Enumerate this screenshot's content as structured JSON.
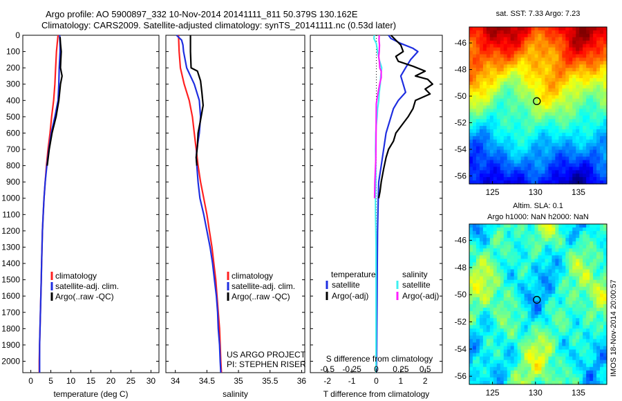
{
  "header": {
    "line1": "Argo profile: AO 5900897_332 10-Nov-2014 20141111_811 50.379S 130.162E",
    "line2": "Climatology: CARS2009. Satellite-adjusted climatology: synTS_20141111.nc (0.53d later)"
  },
  "side_label": "IMOS 18-Nov-2014 20:00:57",
  "colors": {
    "red": "#ff2020",
    "blue": "#1e2ee0",
    "black": "#000000",
    "cyan": "#3ff0f0",
    "magenta": "#ff20ff"
  },
  "chart_data": [
    {
      "type": "line",
      "id": "temperature",
      "xlabel": "temperature (deg C)",
      "xlim": [
        -2,
        32
      ],
      "xticks": [
        0,
        5,
        10,
        15,
        20,
        25,
        30
      ],
      "ylim": [
        2070,
        0
      ],
      "yticks": [
        0,
        100,
        200,
        300,
        400,
        500,
        600,
        700,
        800,
        900,
        1000,
        1100,
        1200,
        1300,
        1400,
        1500,
        1600,
        1700,
        1800,
        1900,
        2000
      ],
      "legend": [
        "climatology",
        "satellite-adj. clim.",
        "Argo(..raw -QC)"
      ],
      "series": [
        {
          "name": "climatology",
          "color": "red",
          "points": [
            [
              6.8,
              0
            ],
            [
              6.6,
              50
            ],
            [
              6.4,
              100
            ],
            [
              6.3,
              150
            ],
            [
              6.2,
              200
            ],
            [
              6.0,
              300
            ],
            [
              5.7,
              400
            ],
            [
              5.2,
              500
            ],
            [
              4.8,
              600
            ],
            [
              4.3,
              700
            ],
            [
              3.9,
              800
            ],
            [
              3.6,
              900
            ],
            [
              3.3,
              1000
            ],
            [
              3.1,
              1100
            ],
            [
              2.9,
              1200
            ],
            [
              2.8,
              1300
            ],
            [
              2.7,
              1400
            ],
            [
              2.6,
              1500
            ],
            [
              2.5,
              1600
            ],
            [
              2.4,
              1700
            ],
            [
              2.3,
              1800
            ],
            [
              2.2,
              1900
            ],
            [
              2.1,
              2000
            ],
            [
              2.1,
              2070
            ]
          ]
        },
        {
          "name": "satellite-adj. clim.",
          "color": "blue",
          "points": [
            [
              7.2,
              0
            ],
            [
              7.3,
              50
            ],
            [
              7.3,
              100
            ],
            [
              7.2,
              150
            ],
            [
              7.1,
              200
            ],
            [
              7.0,
              300
            ],
            [
              6.8,
              400
            ],
            [
              6.0,
              500
            ],
            [
              5.1,
              600
            ],
            [
              4.5,
              700
            ],
            [
              4.0,
              800
            ],
            [
              3.6,
              900
            ],
            [
              3.3,
              1000
            ],
            [
              3.1,
              1100
            ],
            [
              2.9,
              1200
            ],
            [
              2.8,
              1300
            ],
            [
              2.7,
              1400
            ],
            [
              2.6,
              1500
            ],
            [
              2.5,
              1600
            ],
            [
              2.4,
              1700
            ],
            [
              2.3,
              1800
            ],
            [
              2.2,
              1900
            ],
            [
              2.2,
              2000
            ],
            [
              2.2,
              2070
            ]
          ]
        },
        {
          "name": "Argo(..raw -QC)",
          "color": "black",
          "points": [
            [
              7.3,
              10
            ],
            [
              7.4,
              50
            ],
            [
              7.6,
              100
            ],
            [
              7.5,
              150
            ],
            [
              7.4,
              200
            ],
            [
              7.8,
              250
            ],
            [
              7.4,
              300
            ],
            [
              7.2,
              350
            ],
            [
              7.0,
              400
            ],
            [
              6.3,
              500
            ],
            [
              5.3,
              600
            ],
            [
              4.6,
              700
            ],
            [
              4.1,
              800
            ]
          ]
        }
      ]
    },
    {
      "type": "line",
      "id": "salinity",
      "xlabel": "salinity",
      "xlim": [
        33.85,
        36.05
      ],
      "xticks": [
        34,
        34.5,
        35,
        35.5,
        36
      ],
      "ylim": [
        2070,
        0
      ],
      "legend": [
        "climatology",
        "satellite-adj. clim.",
        "Argo(..raw -QC)"
      ],
      "annotation": [
        "US ARGO PROJECT",
        "PI: STEPHEN RISER"
      ],
      "series": [
        {
          "name": "climatology",
          "color": "red",
          "points": [
            [
              34.05,
              0
            ],
            [
              34.06,
              100
            ],
            [
              34.08,
              200
            ],
            [
              34.14,
              300
            ],
            [
              34.22,
              400
            ],
            [
              34.27,
              500
            ],
            [
              34.3,
              600
            ],
            [
              34.33,
              700
            ],
            [
              34.36,
              800
            ],
            [
              34.4,
              900
            ],
            [
              34.45,
              1000
            ],
            [
              34.5,
              1100
            ],
            [
              34.54,
              1200
            ],
            [
              34.58,
              1300
            ],
            [
              34.61,
              1400
            ],
            [
              34.64,
              1500
            ],
            [
              34.66,
              1600
            ],
            [
              34.68,
              1700
            ],
            [
              34.7,
              1800
            ],
            [
              34.71,
              1900
            ],
            [
              34.72,
              2000
            ],
            [
              34.73,
              2070
            ]
          ]
        },
        {
          "name": "satellite-adj. clim.",
          "color": "blue",
          "points": [
            [
              34.02,
              0
            ],
            [
              34.1,
              30
            ],
            [
              34.12,
              60
            ],
            [
              34.13,
              100
            ],
            [
              34.18,
              200
            ],
            [
              34.3,
              300
            ],
            [
              34.38,
              400
            ],
            [
              34.4,
              500
            ],
            [
              34.38,
              600
            ],
            [
              34.34,
              700
            ],
            [
              34.33,
              750
            ],
            [
              34.34,
              800
            ],
            [
              34.36,
              900
            ],
            [
              34.39,
              1000
            ],
            [
              34.45,
              1100
            ],
            [
              34.5,
              1200
            ],
            [
              34.55,
              1300
            ],
            [
              34.59,
              1400
            ],
            [
              34.62,
              1500
            ],
            [
              34.65,
              1600
            ],
            [
              34.67,
              1700
            ],
            [
              34.68,
              1800
            ],
            [
              34.7,
              1900
            ],
            [
              34.71,
              2000
            ],
            [
              34.72,
              2070
            ]
          ]
        },
        {
          "name": "Argo(..raw -QC)",
          "color": "black",
          "points": [
            [
              34.24,
              0
            ],
            [
              34.24,
              100
            ],
            [
              34.25,
              200
            ],
            [
              34.35,
              220
            ],
            [
              34.4,
              280
            ],
            [
              34.42,
              350
            ],
            [
              34.44,
              430
            ],
            [
              34.4,
              520
            ],
            [
              34.36,
              600
            ],
            [
              34.35,
              680
            ],
            [
              34.33,
              750
            ],
            [
              34.34,
              800
            ]
          ]
        }
      ]
    },
    {
      "type": "line",
      "id": "difference",
      "xlabel": "T difference from climatology",
      "xlabel2": "S difference from climatology",
      "xlim": [
        -2.7,
        2.7
      ],
      "xticks": [
        -2,
        -1,
        0,
        1,
        2
      ],
      "xticks2": [
        {
          "value": -0.5,
          "label": "-0.5"
        },
        {
          "value": -0.25,
          "label": "-0.25"
        },
        {
          "value": 0,
          "label": "0"
        },
        {
          "value": 0.25,
          "label": "0.25"
        },
        {
          "value": 0.5,
          "label": "0.5"
        }
      ],
      "ylim": [
        2070,
        0
      ],
      "legend_titles": [
        "temperature",
        "salinity"
      ],
      "legend_left": [
        "satellite",
        "Argo(-adj)"
      ],
      "legend_right": [
        "satellite",
        "Argo(-adj)"
      ],
      "series": [
        {
          "name": "temperature satellite",
          "color": "blue",
          "points": [
            [
              0.5,
              0
            ],
            [
              0.6,
              20
            ],
            [
              1.0,
              50
            ],
            [
              1.5,
              80
            ],
            [
              1.7,
              100
            ],
            [
              1.4,
              150
            ],
            [
              1.2,
              200
            ],
            [
              1.0,
              250
            ],
            [
              1.1,
              300
            ],
            [
              1.2,
              350
            ],
            [
              0.9,
              400
            ],
            [
              0.7,
              450
            ],
            [
              0.6,
              500
            ],
            [
              0.4,
              600
            ],
            [
              0.3,
              700
            ],
            [
              0.2,
              800
            ],
            [
              0.1,
              900
            ],
            [
              0.08,
              1000
            ],
            [
              0.05,
              1200
            ],
            [
              0.04,
              1400
            ],
            [
              0.03,
              1600
            ],
            [
              0.02,
              1800
            ],
            [
              0.01,
              2000
            ],
            [
              0.0,
              2070
            ]
          ]
        },
        {
          "name": "temperature Argo(-adj)",
          "color": "black",
          "points": [
            [
              0.6,
              0
            ],
            [
              0.8,
              30
            ],
            [
              1.0,
              60
            ],
            [
              1.1,
              100
            ],
            [
              0.8,
              130
            ],
            [
              0.9,
              160
            ],
            [
              1.5,
              190
            ],
            [
              2.0,
              220
            ],
            [
              1.6,
              250
            ],
            [
              2.1,
              270
            ],
            [
              2.3,
              300
            ],
            [
              2.0,
              330
            ],
            [
              2.2,
              360
            ],
            [
              1.6,
              400
            ],
            [
              1.5,
              450
            ],
            [
              1.3,
              500
            ],
            [
              1.0,
              560
            ],
            [
              0.8,
              600
            ],
            [
              0.7,
              650
            ],
            [
              0.5,
              700
            ],
            [
              0.4,
              750
            ],
            [
              0.3,
              820
            ],
            [
              0.2,
              900
            ],
            [
              0.15,
              960
            ],
            [
              0.1,
              1000
            ]
          ]
        },
        {
          "name": "salinity satellite",
          "color": "cyan",
          "points": [
            [
              -0.08,
              0
            ],
            [
              -0.1,
              20
            ],
            [
              0.0,
              50
            ],
            [
              0.05,
              100
            ],
            [
              0.12,
              150
            ],
            [
              0.22,
              200
            ],
            [
              0.18,
              250
            ],
            [
              0.16,
              300
            ],
            [
              0.12,
              350
            ],
            [
              0.1,
              400
            ],
            [
              0.05,
              450
            ],
            [
              0.03,
              500
            ],
            [
              0.0,
              550
            ],
            [
              -0.02,
              600
            ],
            [
              -0.03,
              700
            ],
            [
              -0.02,
              800
            ],
            [
              -0.02,
              900
            ],
            [
              -0.03,
              1000
            ],
            [
              -0.03,
              1100
            ],
            [
              -0.02,
              1200
            ],
            [
              -0.01,
              1300
            ],
            [
              -0.01,
              1400
            ],
            [
              -0.01,
              1500
            ],
            [
              -0.01,
              1600
            ],
            [
              -0.01,
              1700
            ],
            [
              -0.01,
              1800
            ],
            [
              -0.01,
              1900
            ],
            [
              -0.01,
              2000
            ],
            [
              -0.01,
              2070
            ]
          ]
        },
        {
          "name": "salinity Argo(-adj)",
          "color": "magenta",
          "points": [
            [
              0.12,
              0
            ],
            [
              0.11,
              30
            ],
            [
              0.13,
              60
            ],
            [
              0.12,
              100
            ],
            [
              0.1,
              130
            ],
            [
              0.13,
              170
            ],
            [
              0.14,
              200
            ],
            [
              0.2,
              220
            ],
            [
              0.2,
              260
            ],
            [
              0.15,
              290
            ],
            [
              0.1,
              330
            ],
            [
              0.05,
              370
            ],
            [
              0.0,
              420
            ],
            [
              -0.02,
              760
            ],
            [
              -0.03,
              800
            ],
            [
              -0.06,
              900
            ],
            [
              -0.07,
              1000
            ]
          ]
        }
      ]
    },
    {
      "type": "heatmap",
      "id": "sst_map",
      "title": "sat. SST: 7.33 Argo: 7.23",
      "xlim": [
        122.3,
        138.3
      ],
      "ylim": [
        -56.6,
        -44.8
      ],
      "xticks": [
        125,
        130,
        135
      ],
      "yticks": [
        -46,
        -48,
        -50,
        -52,
        -54,
        -56
      ],
      "marker": [
        130.162,
        -50.379
      ]
    },
    {
      "type": "heatmap",
      "id": "sla_map",
      "title": "Altim. SLA: 0.1",
      "subtitle": "Argo h1000: NaN h2000: NaN",
      "xlim": [
        122.3,
        138.3
      ],
      "ylim": [
        -56.6,
        -44.8
      ],
      "xticks": [
        125,
        130,
        135
      ],
      "yticks": [
        -46,
        -48,
        -50,
        -52,
        -54,
        -56
      ],
      "marker": [
        130.162,
        -50.379
      ]
    }
  ]
}
